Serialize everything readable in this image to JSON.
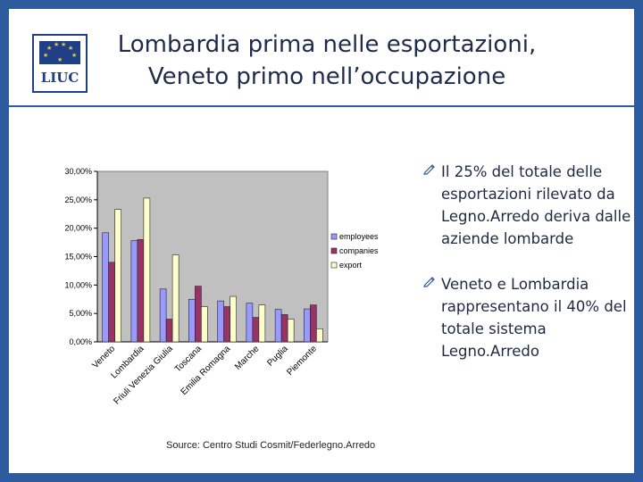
{
  "slide": {
    "title_line1": "Lombardia prima nelle esportazioni,",
    "title_line2": "Veneto primo nell’occupazione",
    "logo_text": "LIUC",
    "source": "Source: Centro Studi Cosmit/Federlegno.Arredo"
  },
  "bullets": [
    "Il 25% del totale delle esportazioni rilevato da Legno.Arredo deriva dalle aziende lombarde",
    "Veneto e Lombardia rappresentano il 40% del totale sistema Legno.Arredo"
  ],
  "colors": {
    "background": "#2e5a9e",
    "plot_area": "#c0c0c0",
    "employees": "#9999ff",
    "companies": "#993366",
    "export": "#ffffcc"
  },
  "chart_data": {
    "type": "bar",
    "categories": [
      "Veneto",
      "Lombardia",
      "Friuli Venezia Giulia",
      "Toscana",
      "Emilia Romagna",
      "Marche",
      "Puglia",
      "Piemonte"
    ],
    "series": [
      {
        "name": "employees",
        "values": [
          19.2,
          17.8,
          9.3,
          7.5,
          7.2,
          6.8,
          5.7,
          5.8
        ]
      },
      {
        "name": "companies",
        "values": [
          14.0,
          18.0,
          4.0,
          9.8,
          6.2,
          4.3,
          4.8,
          6.5
        ]
      },
      {
        "name": "export",
        "values": [
          23.3,
          25.3,
          15.3,
          6.2,
          8.0,
          6.5,
          4.0,
          2.3
        ]
      }
    ],
    "yticks": [
      "0,00%",
      "5,00%",
      "10,00%",
      "15,00%",
      "20,00%",
      "25,00%",
      "30,00%"
    ],
    "ylim": [
      0,
      30
    ],
    "legend_position": "right",
    "grid": false
  }
}
